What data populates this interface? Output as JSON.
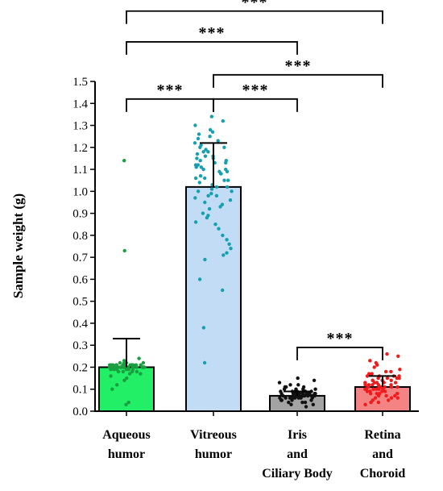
{
  "chart_data": {
    "type": "bar",
    "ylabel": "Sample weight (g)",
    "ylim": [
      0,
      1.5
    ],
    "yticks": [
      0.0,
      0.1,
      0.2,
      0.3,
      0.4,
      0.5,
      0.6,
      0.7,
      0.8,
      0.9,
      1.0,
      1.1,
      1.2,
      1.3,
      1.4,
      1.5
    ],
    "ytick_labels": [
      "0.0",
      "0.1",
      "0.2",
      "0.3",
      "0.4",
      "0.5",
      "0.6",
      "0.7",
      "0.8",
      "0.9",
      "1.0",
      "1.1",
      "1.2",
      "1.3",
      "1.4",
      "1.5"
    ],
    "grid": false,
    "legend": "none",
    "categories": [
      {
        "lines": [
          "Aqueous",
          "humor"
        ],
        "mean": 0.2,
        "sd_upper": 0.33,
        "bar_color": "#22ee66",
        "point_color": "#1a9e40",
        "points": [
          0.03,
          0.04,
          0.1,
          0.12,
          0.14,
          0.15,
          0.16,
          0.17,
          0.17,
          0.18,
          0.18,
          0.18,
          0.18,
          0.19,
          0.19,
          0.19,
          0.19,
          0.19,
          0.19,
          0.2,
          0.2,
          0.2,
          0.2,
          0.2,
          0.2,
          0.2,
          0.2,
          0.2,
          0.2,
          0.2,
          0.2,
          0.2,
          0.2,
          0.2,
          0.2,
          0.2,
          0.2,
          0.2,
          0.2,
          0.2,
          0.2,
          0.2,
          0.2,
          0.2,
          0.2,
          0.21,
          0.21,
          0.21,
          0.21,
          0.21,
          0.21,
          0.21,
          0.21,
          0.21,
          0.21,
          0.21,
          0.21,
          0.21,
          0.21,
          0.21,
          0.22,
          0.22,
          0.22,
          0.22,
          0.23,
          0.24,
          0.73,
          1.14
        ]
      },
      {
        "lines": [
          "Vitreous",
          "humor"
        ],
        "mean": 1.02,
        "sd_upper": 1.22,
        "bar_color": "#c2dcf5",
        "point_color": "#15a0b0",
        "points": [
          0.22,
          0.38,
          0.55,
          0.6,
          0.69,
          0.71,
          0.72,
          0.74,
          0.76,
          0.78,
          0.8,
          0.83,
          0.85,
          0.86,
          0.88,
          0.89,
          0.9,
          0.92,
          0.93,
          0.94,
          0.95,
          0.96,
          0.97,
          0.98,
          0.98,
          0.99,
          1.0,
          1.0,
          1.01,
          1.02,
          1.02,
          1.03,
          1.04,
          1.05,
          1.05,
          1.06,
          1.06,
          1.07,
          1.08,
          1.08,
          1.09,
          1.09,
          1.1,
          1.1,
          1.11,
          1.11,
          1.12,
          1.12,
          1.13,
          1.13,
          1.14,
          1.14,
          1.15,
          1.15,
          1.16,
          1.16,
          1.17,
          1.18,
          1.18,
          1.19,
          1.2,
          1.2,
          1.21,
          1.22,
          1.23,
          1.24,
          1.25,
          1.26,
          1.27,
          1.28,
          1.3,
          1.32,
          1.34
        ]
      },
      {
        "lines": [
          "Iris",
          "and",
          "Ciliary Body"
        ],
        "mean": 0.07,
        "sd_upper": 0.09,
        "bar_color": "#a3a3a3",
        "point_color": "#111111",
        "points": [
          0.02,
          0.03,
          0.03,
          0.04,
          0.04,
          0.04,
          0.05,
          0.05,
          0.05,
          0.05,
          0.05,
          0.06,
          0.06,
          0.06,
          0.06,
          0.06,
          0.06,
          0.06,
          0.06,
          0.07,
          0.07,
          0.07,
          0.07,
          0.07,
          0.07,
          0.07,
          0.07,
          0.07,
          0.07,
          0.07,
          0.07,
          0.07,
          0.07,
          0.07,
          0.07,
          0.07,
          0.08,
          0.08,
          0.08,
          0.08,
          0.08,
          0.08,
          0.08,
          0.08,
          0.08,
          0.08,
          0.08,
          0.09,
          0.09,
          0.09,
          0.09,
          0.09,
          0.09,
          0.1,
          0.1,
          0.1,
          0.1,
          0.11,
          0.11,
          0.11,
          0.12,
          0.12,
          0.13,
          0.14,
          0.15
        ]
      },
      {
        "lines": [
          "Retina",
          "and",
          "Choroid"
        ],
        "mean": 0.11,
        "sd_upper": 0.16,
        "bar_color": "#f48484",
        "point_color": "#ee1c1c",
        "points": [
          0.03,
          0.04,
          0.04,
          0.05,
          0.05,
          0.06,
          0.06,
          0.06,
          0.07,
          0.07,
          0.07,
          0.08,
          0.08,
          0.08,
          0.08,
          0.09,
          0.09,
          0.09,
          0.09,
          0.1,
          0.1,
          0.1,
          0.1,
          0.1,
          0.1,
          0.11,
          0.11,
          0.11,
          0.11,
          0.11,
          0.11,
          0.12,
          0.12,
          0.12,
          0.12,
          0.12,
          0.13,
          0.13,
          0.13,
          0.13,
          0.13,
          0.14,
          0.14,
          0.14,
          0.14,
          0.15,
          0.15,
          0.15,
          0.15,
          0.16,
          0.16,
          0.16,
          0.16,
          0.17,
          0.17,
          0.18,
          0.18,
          0.19,
          0.2,
          0.21,
          0.22,
          0.23,
          0.25,
          0.26
        ]
      }
    ],
    "annotations": [
      {
        "from": 0,
        "to": 3,
        "level": 1.82,
        "label": "***"
      },
      {
        "from": 0,
        "to": 2,
        "level": 1.68,
        "label": "***"
      },
      {
        "from": 1,
        "to": 3,
        "level": 1.53,
        "label": "***"
      },
      {
        "from": 0,
        "to": 1,
        "level": 1.42,
        "label": "***"
      },
      {
        "from": 1,
        "to": 2,
        "level": 1.42,
        "label": "***"
      },
      {
        "from": 2,
        "to": 3,
        "level": 0.29,
        "label": "***"
      }
    ]
  }
}
